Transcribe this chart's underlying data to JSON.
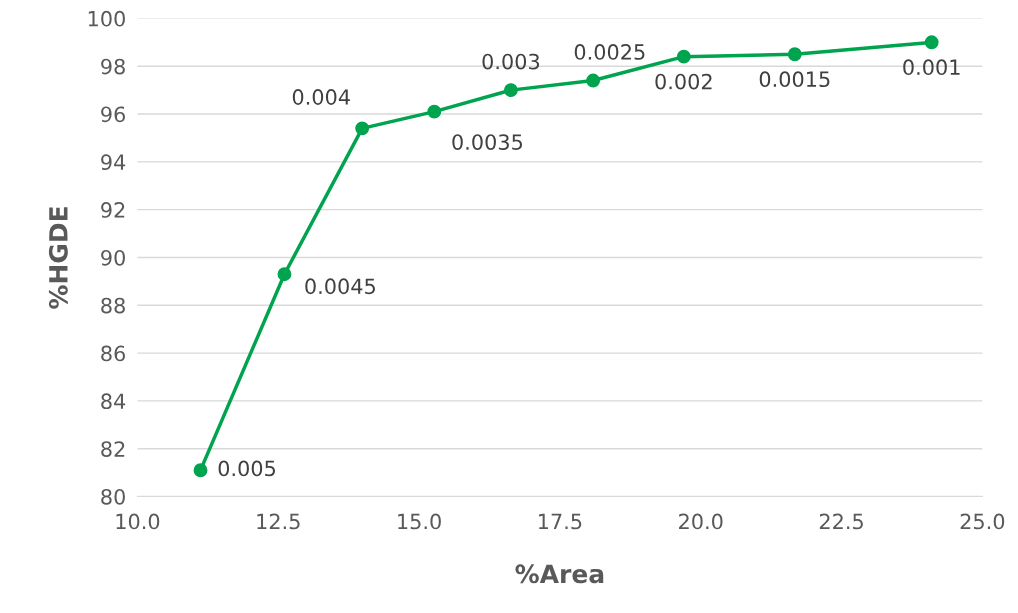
{
  "chart_data": {
    "type": "line",
    "xlabel": "%Area",
    "ylabel": "%HGDE",
    "x": [
      11.12,
      12.61,
      13.99,
      15.27,
      16.63,
      18.09,
      19.7,
      21.67,
      24.1
    ],
    "series": [
      {
        "color": "#00a44f",
        "values": [
          81.1,
          89.3,
          95.4,
          96.1,
          97.0,
          97.4,
          98.4,
          98.5,
          99.0
        ]
      }
    ],
    "xlim": [
      10,
      25
    ],
    "ylim": [
      80,
      100
    ],
    "xticks": [
      {
        "value": 10,
        "label": "10.0"
      },
      {
        "value": 12.5,
        "label": "12.5"
      },
      {
        "value": 15,
        "label": "15.0"
      },
      {
        "value": 17.5,
        "label": "17.5"
      },
      {
        "value": 20,
        "label": "20.0"
      },
      {
        "value": 22.5,
        "label": "22.5"
      },
      {
        "value": 25,
        "label": "25.0"
      }
    ],
    "yticks": [
      80,
      82,
      84,
      86,
      88,
      90,
      92,
      94,
      96,
      98,
      100
    ],
    "annotations": [
      {
        "text": "0.005",
        "x": 11.12,
        "y": 81.1
      },
      {
        "text": "0.0045",
        "x": 12.61,
        "y": 89.3
      },
      {
        "text": "0.004",
        "x": 13.99,
        "y": 95.4
      },
      {
        "text": "0.0035",
        "x": 15.27,
        "y": 96.1
      },
      {
        "text": "0.003",
        "x": 16.63,
        "y": 97.0
      },
      {
        "text": "0.0025",
        "x": 18.09,
        "y": 97.4
      },
      {
        "text": "0.002",
        "x": 19.7,
        "y": 98.4
      },
      {
        "text": "0.0015",
        "x": 21.67,
        "y": 98.5
      },
      {
        "text": "0.001",
        "x": 24.1,
        "y": 99.0
      }
    ],
    "grid": "y",
    "marker": "circle",
    "line_style": "solid"
  }
}
